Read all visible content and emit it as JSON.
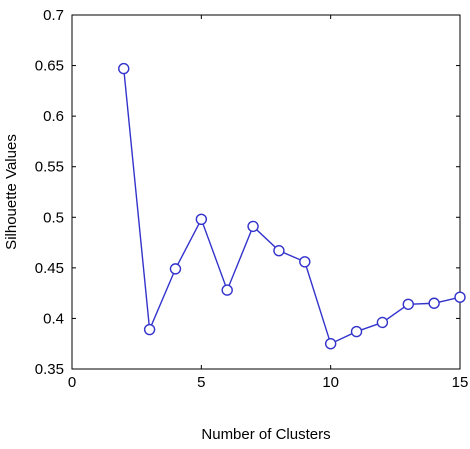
{
  "chart_data": {
    "type": "line",
    "title": "",
    "xlabel": "Number of Clusters",
    "ylabel": "Silhouette Values",
    "xlim": [
      0,
      15
    ],
    "ylim": [
      0.35,
      0.7
    ],
    "x_ticks": [
      0,
      5,
      10,
      15
    ],
    "y_ticks": [
      0.35,
      0.4,
      0.45,
      0.5,
      0.55,
      0.6,
      0.65,
      0.7
    ],
    "x_tick_labels": [
      "0",
      "5",
      "10",
      "15"
    ],
    "y_tick_labels": [
      "0.35",
      "0.4",
      "0.45",
      "0.5",
      "0.55",
      "0.6",
      "0.65",
      "0.7"
    ],
    "grid": false,
    "line_color": "#3333cc",
    "series": [
      {
        "x": [
          2,
          3,
          4,
          5,
          6,
          7,
          8,
          9,
          10,
          11,
          12,
          13,
          14,
          15
        ],
        "values": [
          0.647,
          0.389,
          0.449,
          0.498,
          0.428,
          0.491,
          0.467,
          0.456,
          0.375,
          0.387,
          0.396,
          0.414,
          0.415,
          0.421
        ],
        "marker": "circle"
      }
    ]
  }
}
